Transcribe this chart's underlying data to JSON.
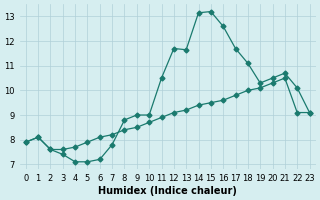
{
  "xlabel": "Humidex (Indice chaleur)",
  "ylabel": "",
  "bg_color": "#d6eef0",
  "grid_color": "#b0d0d8",
  "line_color": "#1a7a6e",
  "line1_x": [
    0,
    1,
    2,
    3,
    4,
    5,
    6,
    7,
    8,
    9,
    10,
    11,
    12,
    13,
    14,
    15,
    16,
    17,
    18,
    19,
    20,
    21,
    22,
    23
  ],
  "line1_y": [
    7.9,
    8.1,
    7.6,
    7.4,
    7.1,
    7.1,
    7.2,
    7.8,
    8.8,
    9.0,
    9.0,
    10.5,
    11.7,
    11.65,
    13.15,
    13.2,
    12.6,
    11.7,
    11.1,
    10.3,
    10.5,
    10.7,
    10.1,
    9.1
  ],
  "line2_x": [
    0,
    1,
    2,
    3,
    4,
    5,
    6,
    7,
    8,
    9,
    10,
    11,
    12,
    13,
    14,
    15,
    16,
    17,
    18,
    19,
    20,
    21,
    22,
    23
  ],
  "line2_y": [
    7.9,
    8.1,
    7.6,
    7.6,
    7.7,
    7.9,
    8.1,
    8.2,
    8.4,
    8.5,
    8.7,
    8.9,
    9.1,
    9.2,
    9.4,
    9.5,
    9.6,
    9.8,
    10.0,
    10.1,
    10.3,
    10.5,
    9.1,
    9.1
  ],
  "xlim": [
    -0.5,
    23.5
  ],
  "ylim": [
    6.8,
    13.5
  ],
  "yticks": [
    7,
    8,
    9,
    10,
    11,
    12,
    13
  ],
  "xticks": [
    0,
    1,
    2,
    3,
    4,
    5,
    6,
    7,
    8,
    9,
    10,
    11,
    12,
    13,
    14,
    15,
    16,
    17,
    18,
    19,
    20,
    21,
    22,
    23
  ]
}
